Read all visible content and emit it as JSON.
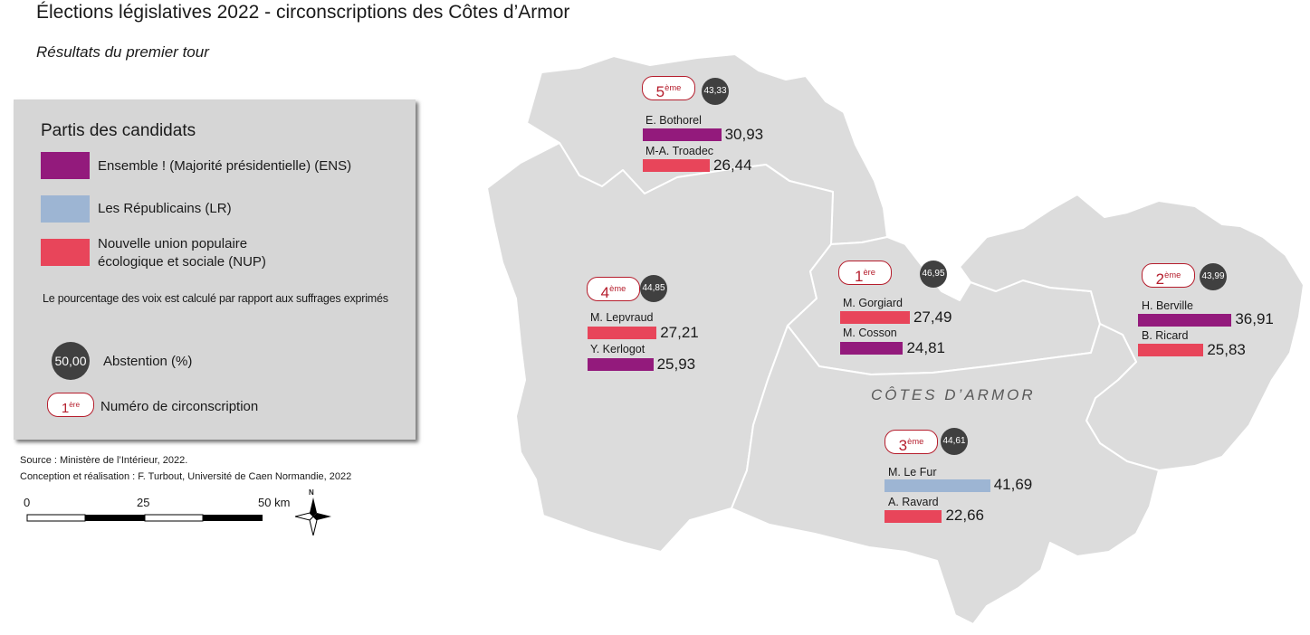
{
  "title": "Élections législatives 2022 - circonscriptions des Côtes d’Armor",
  "subtitle": "Résultats du premier tour",
  "colors": {
    "ENS": "#931a7c",
    "LR": "#9db5d3",
    "NUP": "#e8455a",
    "map_fill": "#dcdcdc",
    "badge_border": "#b51d2c",
    "abstention": "#404040"
  },
  "legend": {
    "title": "Partis des candidats",
    "parties": [
      {
        "key": "ENS",
        "label": "Ensemble ! (Majorité présidentielle) (ENS)"
      },
      {
        "key": "LR",
        "label": "Les Républicains (LR)"
      },
      {
        "key": "NUP",
        "label_line1": "Nouvelle union populaire",
        "label_line2": "écologique et sociale (NUP)"
      }
    ],
    "note": "Le pourcentage des voix est calculé par rapport aux suffrages exprimés",
    "abstention_sample": "50,00",
    "abstention_label": "Abstention (%)",
    "number_sample_base": "1",
    "number_sample_sup": "ère",
    "number_label": "Numéro de circonscription"
  },
  "source": {
    "line1": "Source : Ministère de l’Intérieur, 2022.",
    "line2": "Conception et réalisation : F. Turbout, Université de Caen Normandie, 2022"
  },
  "scale": {
    "labels": [
      "0",
      "25",
      "50 km"
    ],
    "north": "N"
  },
  "region_label": "CÔTES D’ARMOR",
  "constituencies": [
    {
      "number": "5",
      "sup": "ème",
      "abstention": "43,33",
      "candidates": [
        {
          "name": "E. Bothorel",
          "party": "ENS",
          "value": 30.93,
          "label": "30,93"
        },
        {
          "name": "M-A. Troadec",
          "party": "NUP",
          "value": 26.44,
          "label": "26,44"
        }
      ]
    },
    {
      "number": "4",
      "sup": "ème",
      "abstention": "44,85",
      "candidates": [
        {
          "name": "M. Lepvraud",
          "party": "NUP",
          "value": 27.21,
          "label": "27,21"
        },
        {
          "name": "Y. Kerlogot",
          "party": "ENS",
          "value": 25.93,
          "label": "25,93"
        }
      ]
    },
    {
      "number": "1",
      "sup": "ère",
      "abstention": "46,95",
      "candidates": [
        {
          "name": "M. Gorgiard",
          "party": "NUP",
          "value": 27.49,
          "label": "27,49"
        },
        {
          "name": "M. Cosson",
          "party": "ENS",
          "value": 24.81,
          "label": "24,81"
        }
      ]
    },
    {
      "number": "2",
      "sup": "ème",
      "abstention": "43,99",
      "candidates": [
        {
          "name": "H. Berville",
          "party": "ENS",
          "value": 36.91,
          "label": "36,91"
        },
        {
          "name": "B. Ricard",
          "party": "NUP",
          "value": 25.83,
          "label": "25,83"
        }
      ]
    },
    {
      "number": "3",
      "sup": "ème",
      "abstention": "44,61",
      "candidates": [
        {
          "name": "M. Le Fur",
          "party": "LR",
          "value": 41.69,
          "label": "41,69"
        },
        {
          "name": "A. Ravard",
          "party": "NUP",
          "value": 22.66,
          "label": "22,66"
        }
      ]
    }
  ]
}
